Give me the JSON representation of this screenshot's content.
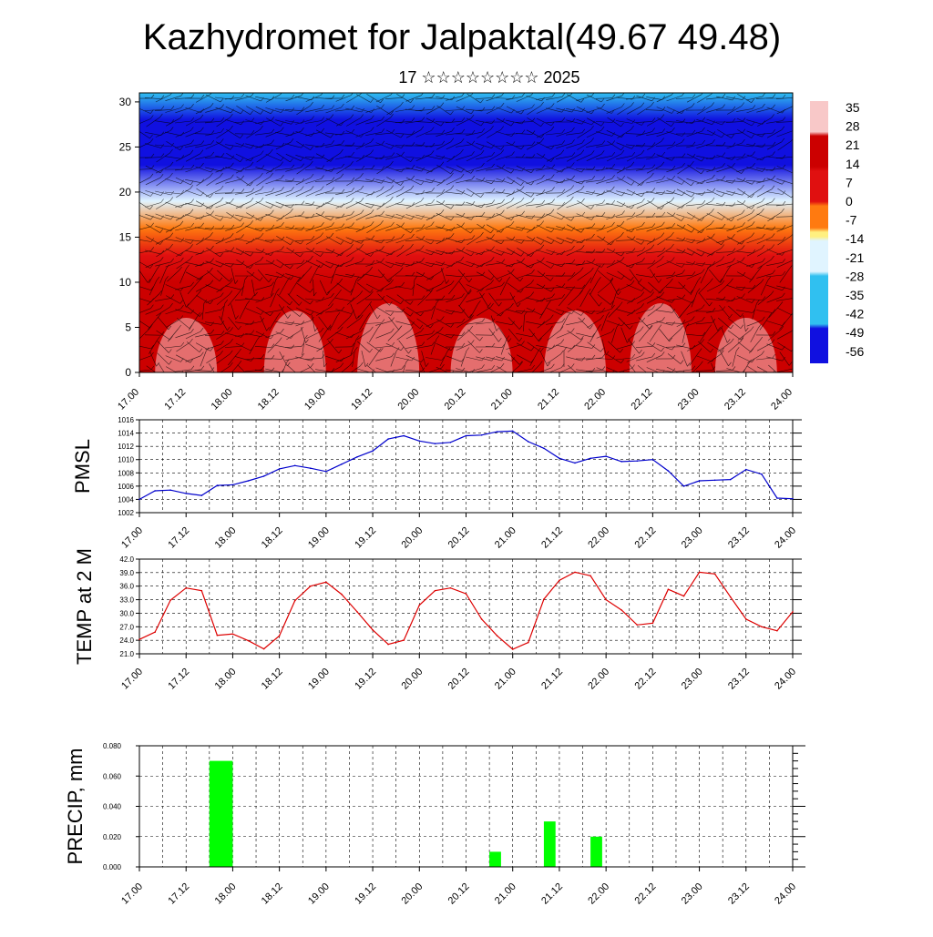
{
  "title": "Kazhydromet for Jalpaktal(49.67 49.48)",
  "subtitle": "17 ☆☆☆☆☆☆☆☆ 2025",
  "time_ticks": [
    "17.00",
    "17.12",
    "18.00",
    "18.12",
    "19.00",
    "19.12",
    "20.00",
    "20.12",
    "21.00",
    "21.12",
    "22.00",
    "22.12",
    "23.00",
    "23.12",
    "24.00"
  ],
  "chart_data": [
    {
      "type": "heatmap",
      "title": "",
      "xlabel": "",
      "ylabel": "",
      "xlim": [
        0,
        84
      ],
      "ylim": [
        0,
        31
      ],
      "y_ticks": [
        "0",
        "5",
        "10",
        "15",
        "20",
        "25",
        "30"
      ],
      "colorbar_labels": [
        "35",
        "28",
        "21",
        "14",
        "7",
        "0",
        "-7",
        "-14",
        "-21",
        "-28",
        "-35",
        "-42",
        "-49",
        "-56"
      ],
      "colorbar_range": [
        -63,
        42
      ],
      "colors": {
        "warm_max": "#f8c8c8",
        "red": "#e01010",
        "orange": "#ff7a10",
        "yellow": "#fff080",
        "cyan": "#30c0f0",
        "blue": "#1010e0",
        "violet": "#8030e0"
      },
      "temperature_profile": [
        {
          "height": 0,
          "value": 28
        },
        {
          "height": 5,
          "value": 24
        },
        {
          "height": 10,
          "value": 16
        },
        {
          "height": 13,
          "value": 6
        },
        {
          "height": 16,
          "value": -8
        },
        {
          "height": 19,
          "value": -26
        },
        {
          "height": 23,
          "value": -50
        },
        {
          "height": 25,
          "value": -57
        },
        {
          "height": 28,
          "value": -53
        },
        {
          "height": 31,
          "value": -45
        }
      ],
      "overlay": "wind-barbs"
    },
    {
      "type": "line",
      "title": "",
      "xlabel": "",
      "ylabel": "PMSL",
      "ylim": [
        1002,
        1016
      ],
      "y_ticks": [
        "1002",
        "1004",
        "1006",
        "1008",
        "1010",
        "1012",
        "1014",
        "1016"
      ],
      "color": "#0000cc",
      "x": [
        0,
        2,
        4,
        6,
        8,
        10,
        12,
        14,
        16,
        18,
        20,
        22,
        24,
        26,
        28,
        30,
        32,
        34,
        36,
        38,
        40,
        42,
        44,
        46,
        48,
        50,
        52,
        54,
        56,
        58,
        60,
        62,
        64,
        66,
        68,
        70,
        72,
        74,
        76,
        78,
        80,
        82,
        84
      ],
      "values": [
        1004.0,
        1005.3,
        1005.4,
        1004.9,
        1004.6,
        1006.1,
        1006.2,
        1006.8,
        1007.5,
        1008.6,
        1009.1,
        1008.7,
        1008.2,
        1009.3,
        1010.4,
        1011.3,
        1013.1,
        1013.6,
        1012.8,
        1012.4,
        1012.6,
        1013.6,
        1013.7,
        1014.2,
        1014.3,
        1012.7,
        1011.7,
        1010.2,
        1009.5,
        1010.2,
        1010.5,
        1009.7,
        1009.8,
        1010.0,
        1008.3,
        1006.0,
        1006.8,
        1006.9,
        1007.0,
        1008.5,
        1007.8,
        1004.2,
        1004.1
      ]
    },
    {
      "type": "line",
      "title": "",
      "xlabel": "",
      "ylabel": "TEMP at 2 M",
      "ylim": [
        21,
        42
      ],
      "y_ticks": [
        "21.0",
        "24.0",
        "27.0",
        "30.0",
        "33.0",
        "36.0",
        "39.0",
        "42.0"
      ],
      "color": "#dd0000",
      "x": [
        0,
        2,
        4,
        6,
        8,
        10,
        12,
        14,
        16,
        18,
        20,
        22,
        24,
        26,
        28,
        30,
        32,
        34,
        36,
        38,
        40,
        42,
        44,
        46,
        48,
        50,
        52,
        54,
        56,
        58,
        60,
        62,
        64,
        66,
        68,
        70,
        72,
        74,
        76,
        78,
        80,
        82,
        84
      ],
      "values": [
        24.2,
        25.8,
        32.9,
        35.6,
        35.0,
        25.1,
        25.4,
        23.9,
        22.1,
        25.0,
        32.8,
        36.0,
        36.9,
        34.2,
        30.3,
        26.3,
        23.1,
        24.0,
        31.8,
        35.0,
        35.6,
        34.3,
        28.7,
        25.0,
        22.0,
        23.5,
        33.1,
        37.3,
        39.1,
        38.3,
        33.0,
        30.7,
        27.4,
        27.8,
        35.3,
        33.8,
        39.1,
        38.7,
        33.6,
        28.7,
        27.0,
        26.1,
        30.3
      ]
    },
    {
      "type": "bar",
      "title": "",
      "xlabel": "",
      "ylabel": "PRECIP, mm",
      "ylim": [
        0,
        0.08
      ],
      "y_ticks": [
        "0.000",
        "0.020",
        "0.040",
        "0.060",
        "0.080"
      ],
      "color": "#00ff00",
      "bars": [
        {
          "x_start": 9,
          "x_end": 12,
          "value": 0.07
        },
        {
          "x_start": 45,
          "x_end": 46.5,
          "value": 0.01
        },
        {
          "x_start": 52,
          "x_end": 53.5,
          "value": 0.03
        },
        {
          "x_start": 58,
          "x_end": 59.5,
          "value": 0.02
        }
      ]
    }
  ]
}
